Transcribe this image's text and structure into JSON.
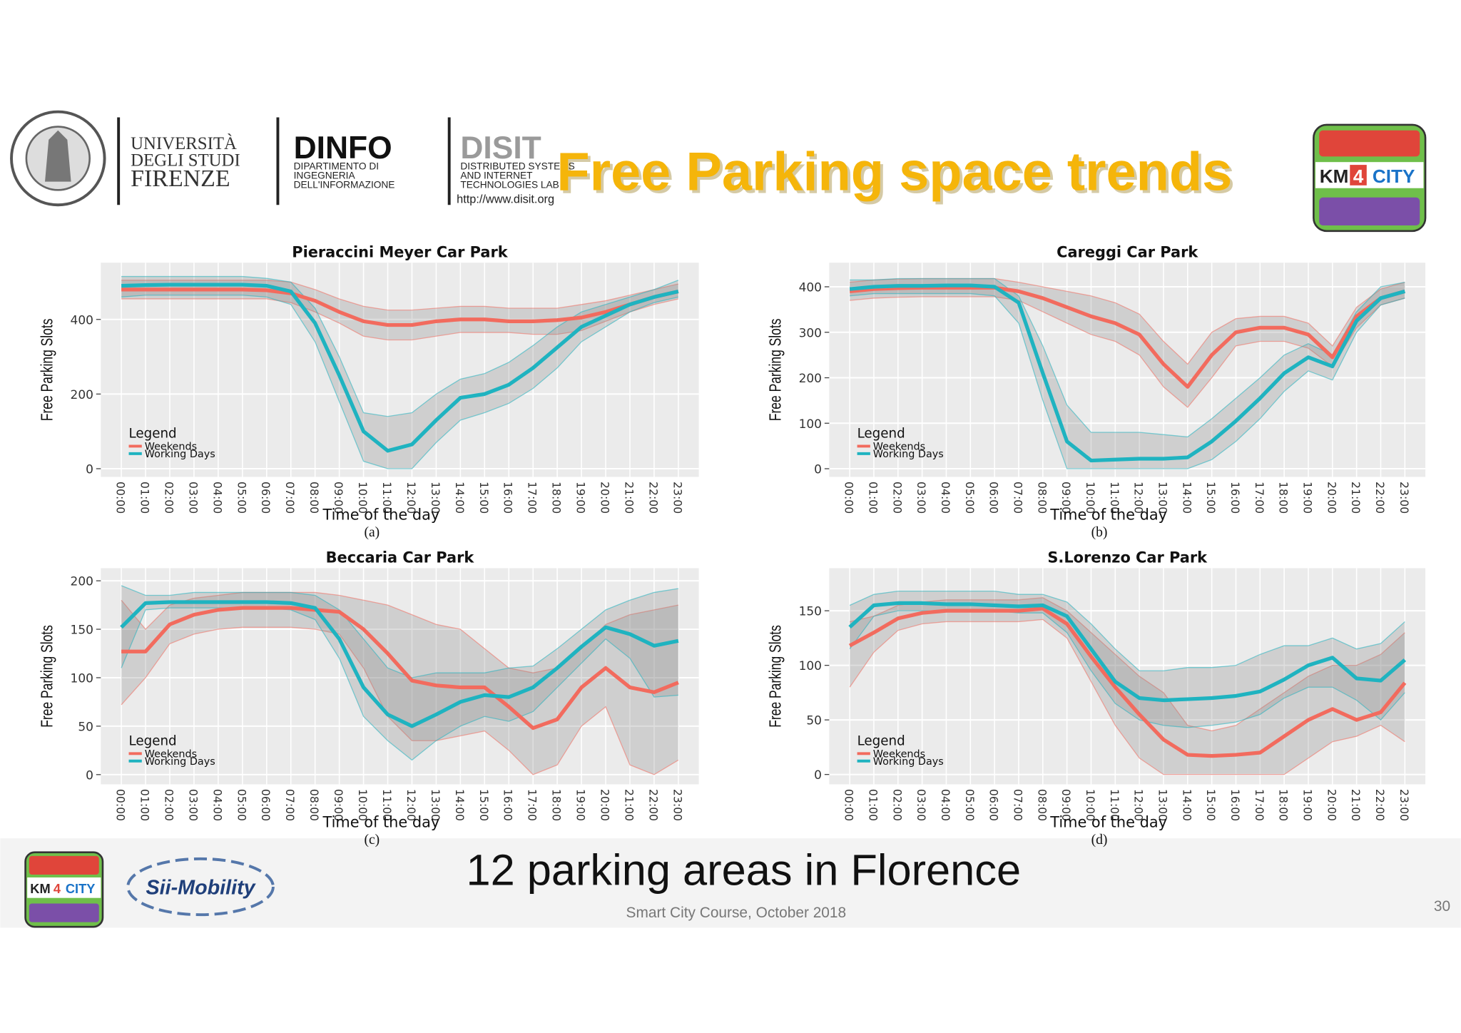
{
  "header": {
    "university": [
      "UNIVERSITÀ",
      "DEGLI STUDI",
      "FIRENZE"
    ],
    "dinfo": {
      "name": "DINFO",
      "lines": [
        "DIPARTIMENTO DI",
        "INGEGNERIA",
        "DELL'INFORMAZIONE"
      ]
    },
    "disit": {
      "name": "DISIT",
      "lines": [
        "DISTRIBUTED SYSTEMS",
        "AND INTERNET",
        "TECHNOLOGIES LAB"
      ],
      "url": "http://www.disit.org"
    },
    "title": "Free Parking space trends",
    "km4city": [
      "KM",
      "4",
      "CITY"
    ]
  },
  "footer": {
    "subtitle": "12 parking areas in Florence",
    "course": "Smart City Course, October 2018",
    "page": "30",
    "sii_mobility": "Sii-Mobility"
  },
  "chart_data": [
    {
      "type": "line",
      "title": "Pieraccini Meyer Car Park",
      "caption": "(a)",
      "x_label": "Time of the day",
      "y_label": "Free Parking Slots",
      "legend_title": "Legend",
      "grid": true,
      "categories": [
        "00:00",
        "01:00",
        "02:00",
        "03:00",
        "04:00",
        "05:00",
        "06:00",
        "07:00",
        "08:00",
        "09:00",
        "10:00",
        "11:00",
        "12:00",
        "13:00",
        "14:00",
        "15:00",
        "16:00",
        "17:00",
        "18:00",
        "19:00",
        "20:00",
        "21:00",
        "22:00",
        "23:00"
      ],
      "ylim": [
        -22,
        552
      ],
      "yticks": [
        0,
        200,
        400
      ],
      "series": [
        {
          "name": "Weekends",
          "color": "#f26b5e",
          "values": [
            480,
            480,
            480,
            480,
            480,
            480,
            478,
            470,
            450,
            420,
            395,
            385,
            385,
            395,
            400,
            400,
            395,
            395,
            398,
            405,
            420,
            440,
            460,
            475
          ],
          "lower": [
            455,
            455,
            455,
            455,
            455,
            455,
            455,
            445,
            420,
            390,
            355,
            345,
            345,
            355,
            365,
            365,
            365,
            360,
            360,
            370,
            395,
            420,
            440,
            455
          ],
          "upper": [
            505,
            505,
            505,
            505,
            505,
            505,
            505,
            500,
            480,
            455,
            435,
            425,
            425,
            430,
            435,
            435,
            430,
            430,
            430,
            440,
            450,
            465,
            480,
            495
          ]
        },
        {
          "name": "Working Days",
          "color": "#1fb3c0",
          "values": [
            490,
            492,
            493,
            493,
            493,
            493,
            490,
            475,
            390,
            250,
            100,
            48,
            65,
            130,
            190,
            200,
            225,
            270,
            325,
            380,
            410,
            440,
            460,
            475
          ],
          "lower": [
            460,
            465,
            465,
            465,
            465,
            465,
            460,
            440,
            340,
            180,
            20,
            0,
            0,
            70,
            130,
            150,
            175,
            215,
            270,
            340,
            380,
            420,
            445,
            460
          ],
          "upper": [
            515,
            515,
            515,
            515,
            515,
            515,
            510,
            500,
            430,
            300,
            150,
            140,
            150,
            200,
            240,
            255,
            285,
            330,
            380,
            420,
            440,
            460,
            480,
            505
          ]
        }
      ]
    },
    {
      "type": "line",
      "title": "Careggi Car Park",
      "caption": "(b)",
      "x_label": "Time of the day",
      "y_label": "Free Parking Slots",
      "legend_title": "Legend",
      "grid": true,
      "categories": [
        "00:00",
        "01:00",
        "02:00",
        "03:00",
        "04:00",
        "05:00",
        "06:00",
        "07:00",
        "08:00",
        "09:00",
        "10:00",
        "11:00",
        "12:00",
        "13:00",
        "14:00",
        "15:00",
        "16:00",
        "17:00",
        "18:00",
        "19:00",
        "20:00",
        "21:00",
        "22:00",
        "23:00"
      ],
      "ylim": [
        -18,
        453
      ],
      "yticks": [
        0,
        100,
        200,
        300,
        400
      ],
      "series": [
        {
          "name": "Weekends",
          "color": "#f26b5e",
          "values": [
            390,
            395,
            397,
            398,
            398,
            398,
            398,
            390,
            375,
            355,
            335,
            320,
            295,
            230,
            180,
            250,
            300,
            310,
            310,
            295,
            245,
            335,
            375,
            390
          ],
          "lower": [
            370,
            375,
            377,
            378,
            378,
            378,
            378,
            370,
            345,
            320,
            295,
            280,
            250,
            180,
            135,
            200,
            270,
            280,
            280,
            265,
            225,
            310,
            360,
            375
          ],
          "upper": [
            410,
            415,
            417,
            418,
            418,
            418,
            418,
            410,
            400,
            390,
            380,
            365,
            340,
            280,
            230,
            300,
            330,
            335,
            335,
            320,
            270,
            355,
            395,
            410
          ]
        },
        {
          "name": "Working Days",
          "color": "#1fb3c0",
          "values": [
            395,
            400,
            402,
            402,
            403,
            403,
            400,
            365,
            210,
            60,
            18,
            20,
            22,
            22,
            25,
            60,
            105,
            155,
            210,
            245,
            225,
            325,
            375,
            390
          ],
          "lower": [
            380,
            385,
            385,
            385,
            385,
            385,
            380,
            320,
            150,
            0,
            0,
            0,
            0,
            0,
            0,
            20,
            60,
            110,
            170,
            215,
            195,
            300,
            360,
            375
          ],
          "upper": [
            415,
            415,
            418,
            418,
            418,
            418,
            418,
            380,
            270,
            140,
            80,
            80,
            80,
            75,
            70,
            110,
            155,
            200,
            250,
            275,
            250,
            345,
            400,
            410
          ]
        }
      ]
    },
    {
      "type": "line",
      "title": "Beccaria Car Park",
      "caption": "(c)",
      "x_label": "Time of the day",
      "y_label": "Free Parking Slots",
      "legend_title": "Legend",
      "grid": true,
      "categories": [
        "00:00",
        "01:00",
        "02:00",
        "03:00",
        "04:00",
        "05:00",
        "06:00",
        "07:00",
        "08:00",
        "09:00",
        "10:00",
        "11:00",
        "12:00",
        "13:00",
        "14:00",
        "15:00",
        "16:00",
        "17:00",
        "18:00",
        "19:00",
        "20:00",
        "21:00",
        "22:00",
        "23:00"
      ],
      "ylim": [
        -10,
        213
      ],
      "yticks": [
        0,
        50,
        100,
        150,
        200
      ],
      "series": [
        {
          "name": "Weekends",
          "color": "#f26b5e",
          "values": [
            127,
            127,
            155,
            165,
            170,
            172,
            172,
            172,
            170,
            168,
            150,
            125,
            97,
            92,
            90,
            90,
            70,
            48,
            57,
            90,
            110,
            90,
            85,
            95
          ],
          "lower": [
            72,
            100,
            135,
            145,
            150,
            152,
            152,
            152,
            150,
            145,
            110,
            60,
            35,
            35,
            40,
            45,
            25,
            0,
            10,
            50,
            70,
            10,
            0,
            15
          ],
          "upper": [
            180,
            150,
            175,
            182,
            185,
            188,
            188,
            188,
            188,
            185,
            180,
            175,
            165,
            155,
            150,
            130,
            110,
            105,
            110,
            130,
            155,
            165,
            170,
            175
          ]
        },
        {
          "name": "Working Days",
          "color": "#1fb3c0",
          "values": [
            152,
            177,
            178,
            178,
            178,
            178,
            178,
            177,
            172,
            140,
            90,
            62,
            50,
            62,
            75,
            82,
            80,
            90,
            110,
            132,
            152,
            145,
            133,
            138
          ],
          "lower": [
            110,
            170,
            172,
            172,
            172,
            172,
            172,
            170,
            160,
            120,
            60,
            35,
            15,
            35,
            50,
            60,
            55,
            65,
            90,
            115,
            140,
            120,
            80,
            82
          ],
          "upper": [
            195,
            185,
            185,
            188,
            188,
            188,
            188,
            188,
            185,
            170,
            140,
            110,
            100,
            105,
            105,
            105,
            110,
            112,
            130,
            150,
            170,
            180,
            188,
            192
          ]
        }
      ]
    },
    {
      "type": "line",
      "title": "S.Lorenzo Car Park",
      "caption": "(d)",
      "x_label": "Time of the day",
      "y_label": "Free Parking Slots",
      "legend_title": "Legend",
      "grid": true,
      "categories": [
        "00:00",
        "01:00",
        "02:00",
        "03:00",
        "04:00",
        "05:00",
        "06:00",
        "07:00",
        "08:00",
        "09:00",
        "10:00",
        "11:00",
        "12:00",
        "13:00",
        "14:00",
        "15:00",
        "16:00",
        "17:00",
        "18:00",
        "19:00",
        "20:00",
        "21:00",
        "22:00",
        "23:00"
      ],
      "ylim": [
        -9,
        189
      ],
      "yticks": [
        0,
        50,
        100,
        150
      ],
      "series": [
        {
          "name": "Weekends",
          "color": "#f26b5e",
          "values": [
            118,
            130,
            143,
            148,
            150,
            150,
            150,
            150,
            152,
            138,
            108,
            80,
            55,
            32,
            18,
            17,
            18,
            20,
            35,
            50,
            60,
            50,
            57,
            84
          ],
          "lower": [
            80,
            112,
            132,
            138,
            140,
            140,
            140,
            140,
            142,
            125,
            85,
            45,
            15,
            0,
            0,
            0,
            0,
            0,
            0,
            15,
            30,
            35,
            45,
            30
          ],
          "upper": [
            140,
            145,
            155,
            158,
            160,
            160,
            160,
            160,
            162,
            150,
            130,
            110,
            90,
            75,
            45,
            40,
            45,
            60,
            75,
            90,
            100,
            100,
            110,
            130
          ]
        },
        {
          "name": "Working Days",
          "color": "#1fb3c0",
          "values": [
            135,
            155,
            157,
            157,
            156,
            156,
            155,
            154,
            155,
            145,
            115,
            85,
            70,
            68,
            69,
            70,
            72,
            76,
            87,
            100,
            107,
            88,
            86,
            105
          ],
          "lower": [
            115,
            145,
            150,
            150,
            150,
            150,
            150,
            148,
            148,
            130,
            95,
            65,
            50,
            45,
            43,
            45,
            48,
            55,
            70,
            80,
            80,
            68,
            50,
            75
          ],
          "upper": [
            155,
            165,
            168,
            168,
            168,
            168,
            168,
            165,
            165,
            158,
            138,
            115,
            95,
            95,
            98,
            98,
            100,
            110,
            118,
            118,
            125,
            115,
            120,
            140
          ]
        }
      ]
    }
  ]
}
